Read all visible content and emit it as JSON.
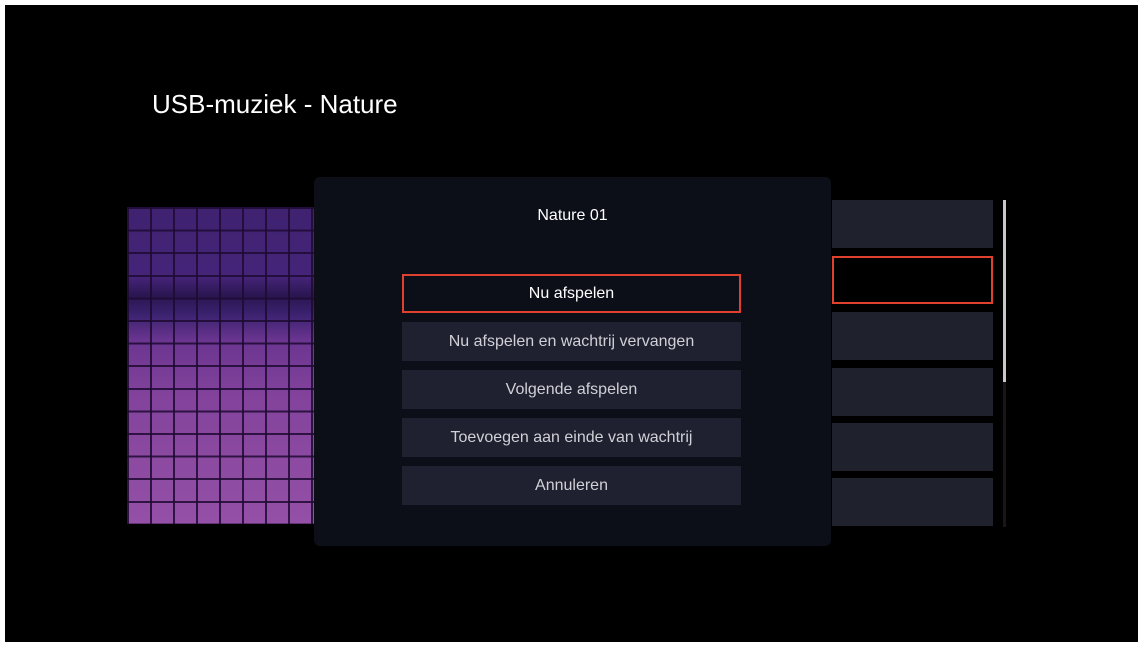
{
  "header": {
    "title": "USB-muziek - Nature"
  },
  "dialog": {
    "title": "Nature 01",
    "options": [
      {
        "label": "Nu afspelen",
        "focused": true
      },
      {
        "label": "Nu afspelen en wachtrij vervangen"
      },
      {
        "label": "Volgende afspelen"
      },
      {
        "label": "Toevoegen aan einde van wachtrij"
      },
      {
        "label": "Annuleren"
      }
    ]
  },
  "colors": {
    "focus": "#e0412f",
    "button": "#1f2130",
    "dialog": "#0d0f18"
  },
  "scrollbar": {
    "position_fraction": 0.0,
    "visible_fraction": 0.56
  }
}
